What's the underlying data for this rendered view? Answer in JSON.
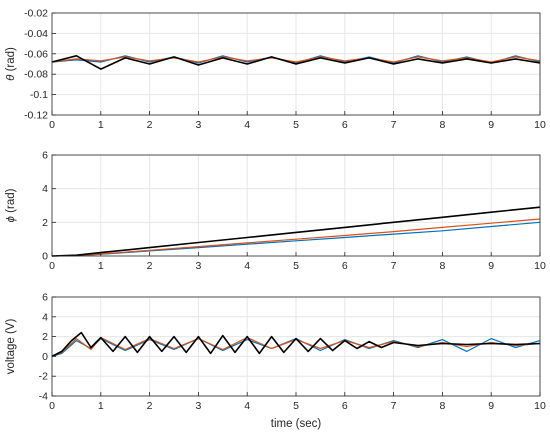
{
  "chart_data": [
    {
      "type": "line",
      "ylabel_symbol": "θ",
      "ylabel_unit": " (rad)",
      "xlim": [
        0,
        10
      ],
      "ylim": [
        -0.12,
        -0.02
      ],
      "xticks": [
        "0",
        "1",
        "2",
        "3",
        "4",
        "5",
        "6",
        "7",
        "8",
        "9",
        "10"
      ],
      "yticks": [
        "-0.02",
        "-0.04",
        "-0.06",
        "-0.08",
        "-0.1",
        "-0.12"
      ],
      "ytick_values": [
        -0.02,
        -0.04,
        -0.06,
        -0.08,
        -0.1,
        -0.12
      ],
      "grid": true,
      "series": [
        {
          "color": "#0072BD",
          "x": [
            0,
            0.5,
            1,
            1.5,
            2,
            2.5,
            3,
            3.5,
            4,
            4.5,
            5,
            5.5,
            6,
            6.5,
            7,
            7.5,
            8,
            8.5,
            9,
            9.5,
            10
          ],
          "y": [
            -0.068,
            -0.066,
            -0.068,
            -0.062,
            -0.068,
            -0.063,
            -0.069,
            -0.062,
            -0.068,
            -0.063,
            -0.069,
            -0.062,
            -0.068,
            -0.063,
            -0.069,
            -0.062,
            -0.068,
            -0.063,
            -0.069,
            -0.062,
            -0.068
          ]
        },
        {
          "color": "#D95319",
          "x": [
            0,
            0.5,
            1,
            1.5,
            2,
            2.5,
            3,
            3.5,
            4,
            4.5,
            5,
            5.5,
            6,
            6.5,
            7,
            7.5,
            8,
            8.5,
            9,
            9.5,
            10
          ],
          "y": [
            -0.068,
            -0.065,
            -0.067,
            -0.063,
            -0.067,
            -0.064,
            -0.068,
            -0.063,
            -0.067,
            -0.064,
            -0.068,
            -0.063,
            -0.067,
            -0.064,
            -0.068,
            -0.063,
            -0.067,
            -0.064,
            -0.068,
            -0.063,
            -0.067
          ]
        },
        {
          "color": "#000000",
          "x": [
            0,
            0.5,
            1,
            1.5,
            2,
            2.5,
            3,
            3.5,
            4,
            4.5,
            5,
            5.5,
            6,
            6.5,
            7,
            7.5,
            8,
            8.5,
            9,
            9.5,
            10
          ],
          "y": [
            -0.068,
            -0.062,
            -0.075,
            -0.064,
            -0.07,
            -0.063,
            -0.071,
            -0.064,
            -0.07,
            -0.063,
            -0.07,
            -0.064,
            -0.069,
            -0.064,
            -0.07,
            -0.065,
            -0.069,
            -0.065,
            -0.069,
            -0.065,
            -0.069
          ]
        }
      ]
    },
    {
      "type": "line",
      "ylabel_symbol": "ϕ",
      "ylabel_unit": " (rad)",
      "xlim": [
        0,
        10
      ],
      "ylim": [
        0,
        6
      ],
      "xticks": [
        "0",
        "1",
        "2",
        "3",
        "4",
        "5",
        "6",
        "7",
        "8",
        "9",
        "10"
      ],
      "yticks": [
        "0",
        "2",
        "4",
        "6"
      ],
      "ytick_values": [
        0,
        2,
        4,
        6
      ],
      "grid": true,
      "series": [
        {
          "color": "#0072BD",
          "x": [
            0,
            0.5,
            1,
            2,
            3,
            4,
            5,
            6,
            7,
            8,
            9,
            10
          ],
          "y": [
            0,
            0.02,
            0.1,
            0.3,
            0.5,
            0.7,
            0.9,
            1.1,
            1.3,
            1.5,
            1.75,
            2.0
          ]
        },
        {
          "color": "#D95319",
          "x": [
            0,
            0.5,
            1,
            2,
            3,
            4,
            5,
            6,
            7,
            8,
            9,
            10
          ],
          "y": [
            0,
            0.02,
            0.12,
            0.34,
            0.56,
            0.78,
            1.0,
            1.22,
            1.45,
            1.7,
            1.95,
            2.2
          ]
        },
        {
          "color": "#000000",
          "x": [
            0,
            0.5,
            1,
            2,
            3,
            4,
            5,
            6,
            7,
            8,
            9,
            10
          ],
          "y": [
            0,
            0.05,
            0.2,
            0.5,
            0.8,
            1.1,
            1.4,
            1.7,
            2.0,
            2.3,
            2.6,
            2.9
          ]
        }
      ]
    },
    {
      "type": "line",
      "ylabel": "voltage (V)",
      "xlabel": "time (sec)",
      "xlim": [
        0,
        10
      ],
      "ylim": [
        -4,
        6
      ],
      "xticks": [
        "0",
        "1",
        "2",
        "3",
        "4",
        "5",
        "6",
        "7",
        "8",
        "9",
        "10"
      ],
      "yticks": [
        "6",
        "4",
        "2",
        "0",
        "-2",
        "-4"
      ],
      "ytick_values": [
        6,
        4,
        2,
        0,
        -2,
        -4
      ],
      "grid": true,
      "series": [
        {
          "color": "#0072BD",
          "x": [
            0,
            0.2,
            0.5,
            0.8,
            1,
            1.5,
            2,
            2.5,
            3,
            3.5,
            4,
            4.5,
            5,
            5.5,
            6,
            6.5,
            7,
            7.5,
            8,
            8.5,
            9,
            9.5,
            10
          ],
          "y": [
            0,
            0.3,
            1.6,
            0.8,
            1.8,
            0.6,
            1.7,
            0.7,
            1.8,
            0.6,
            1.7,
            0.8,
            1.8,
            0.6,
            1.7,
            0.8,
            1.6,
            0.9,
            1.7,
            0.5,
            1.8,
            0.9,
            1.6
          ]
        },
        {
          "color": "#D95319",
          "x": [
            0,
            0.2,
            0.5,
            0.8,
            1,
            1.5,
            2,
            2.5,
            3,
            3.5,
            4,
            4.5,
            5,
            5.5,
            6,
            6.5,
            7,
            7.5,
            8,
            8.5,
            9,
            9.5,
            10
          ],
          "y": [
            0,
            0.4,
            1.8,
            0.7,
            1.9,
            0.7,
            1.8,
            0.8,
            1.8,
            0.7,
            1.9,
            0.8,
            1.7,
            0.8,
            1.6,
            0.9,
            1.5,
            1.0,
            1.4,
            1.0,
            1.4,
            1.1,
            1.3
          ]
        },
        {
          "color": "#000000",
          "x": [
            0,
            0.2,
            0.4,
            0.6,
            0.8,
            1,
            1.25,
            1.5,
            1.75,
            2,
            2.25,
            2.5,
            2.75,
            3,
            3.25,
            3.5,
            3.75,
            4,
            4.25,
            4.5,
            4.75,
            5,
            5.25,
            5.5,
            5.75,
            6,
            6.25,
            6.5,
            6.75,
            7,
            7.5,
            8,
            8.5,
            9,
            9.5,
            10
          ],
          "y": [
            0,
            0.5,
            1.6,
            2.4,
            0.9,
            1.9,
            0.5,
            2.0,
            0.4,
            2.0,
            0.5,
            2.0,
            0.4,
            2.0,
            0.3,
            2.1,
            0.4,
            2.0,
            0.3,
            2.0,
            0.4,
            1.8,
            0.5,
            1.8,
            0.6,
            1.6,
            0.8,
            1.5,
            0.9,
            1.4,
            1.1,
            1.3,
            1.2,
            1.3,
            1.2,
            1.3
          ]
        }
      ]
    }
  ]
}
